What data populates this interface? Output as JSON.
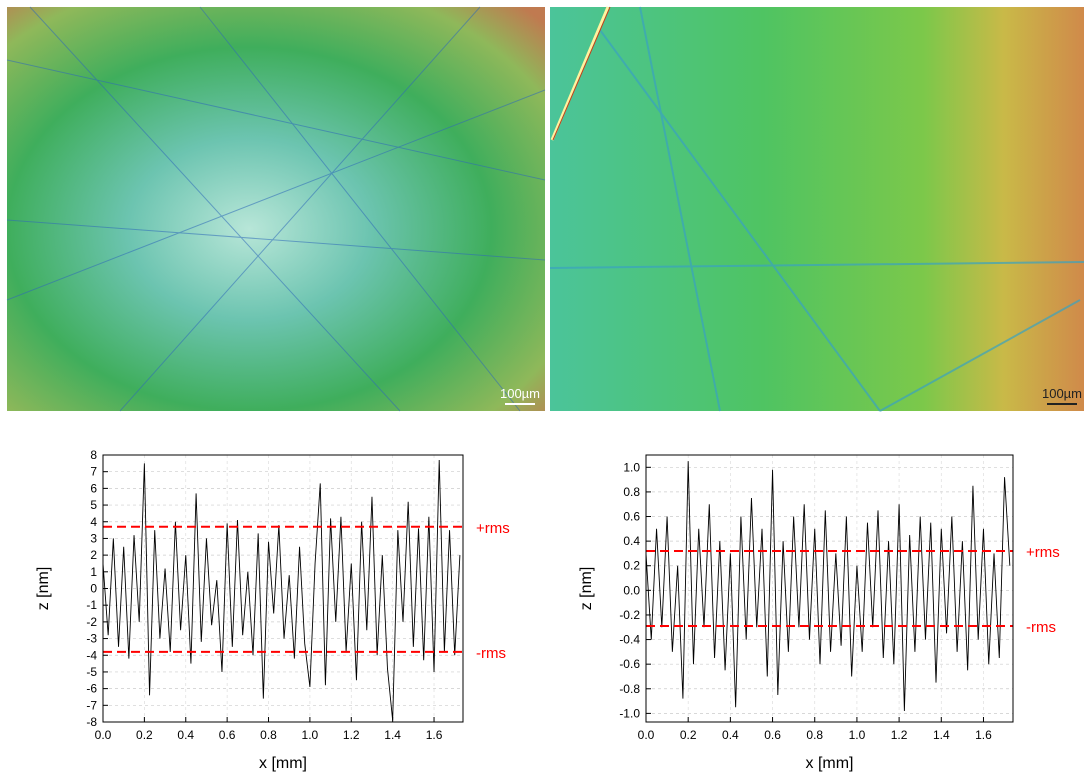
{
  "images": [
    {
      "scale_label": "100µm"
    },
    {
      "scale_label": "100µm"
    }
  ],
  "chart_data": [
    {
      "type": "line",
      "xlabel": "x [mm]",
      "ylabel": "z [nm]",
      "color": "#000000",
      "grid": true,
      "xlim": [
        0,
        1.74
      ],
      "ylim": [
        -8,
        8
      ],
      "xticks": [
        {
          "value": 0,
          "label": "0.0"
        },
        0.2,
        0.4,
        0.6,
        0.8,
        {
          "value": 1,
          "label": "1.0"
        },
        1.2,
        1.4,
        1.6
      ],
      "yticks": [
        -8,
        -7,
        -6,
        -5,
        -4,
        -3,
        -2,
        -1,
        0,
        1,
        2,
        3,
        4,
        5,
        6,
        7,
        8
      ],
      "reference_lines": [
        {
          "value": 3.7,
          "label": "+rms",
          "color": "#ff0000"
        },
        {
          "value": -3.8,
          "label": "-rms",
          "color": "#ff0000"
        }
      ],
      "x": [
        0,
        0.025,
        0.05,
        0.075,
        0.1,
        0.125,
        0.15,
        0.175,
        0.2,
        0.225,
        0.25,
        0.275,
        0.3,
        0.325,
        0.35,
        0.375,
        0.4,
        0.425,
        0.45,
        0.475,
        0.5,
        0.525,
        0.55,
        0.575,
        0.6,
        0.625,
        0.65,
        0.675,
        0.7,
        0.725,
        0.75,
        0.775,
        0.8,
        0.825,
        0.85,
        0.875,
        0.9,
        0.925,
        0.95,
        0.975,
        1,
        1.025,
        1.05,
        1.075,
        1.1,
        1.125,
        1.15,
        1.175,
        1.2,
        1.225,
        1.25,
        1.275,
        1.3,
        1.325,
        1.35,
        1.375,
        1.4,
        1.425,
        1.45,
        1.475,
        1.5,
        1.525,
        1.55,
        1.575,
        1.6,
        1.625,
        1.65,
        1.675,
        1.7,
        1.725
      ],
      "values": [
        1.5,
        -2.8,
        3.0,
        -3.5,
        2.5,
        -4.2,
        3.2,
        -2.0,
        7.5,
        -6.4,
        3.5,
        -3.0,
        1.2,
        -3.8,
        4.0,
        -2.5,
        2.0,
        -4.5,
        5.7,
        -3.2,
        3.0,
        -2.2,
        0.5,
        -5.0,
        3.9,
        -3.5,
        4.1,
        -2.8,
        1.0,
        -4.0,
        3.3,
        -6.6,
        2.8,
        -1.5,
        3.8,
        -3.0,
        0.8,
        -4.2,
        2.5,
        -3.3,
        -5.9,
        1.5,
        6.3,
        -5.8,
        4.2,
        -2.0,
        4.3,
        -3.8,
        1.5,
        -5.5,
        4.0,
        -2.5,
        5.5,
        -4.0,
        2.0,
        -4.8,
        -7.9,
        3.5,
        -2.0,
        5.2,
        -3.5,
        3.6,
        -4.3,
        4.3,
        -5.0,
        7.7,
        -3.8,
        3.5,
        -4.0,
        2.0
      ]
    },
    {
      "type": "line",
      "xlabel": "x [mm]",
      "ylabel": "z [nm]",
      "color": "#000000",
      "grid": true,
      "xlim": [
        0,
        1.74
      ],
      "ylim": [
        -1.07,
        1.1
      ],
      "xticks": [
        {
          "value": 0,
          "label": "0.0"
        },
        0.2,
        0.4,
        0.6,
        0.8,
        {
          "value": 1,
          "label": "1.0"
        },
        1.2,
        1.4,
        1.6
      ],
      "yticks": [
        {
          "value": -1,
          "label": "-1.0"
        },
        -0.8,
        -0.6,
        -0.4,
        -0.2,
        {
          "value": 0,
          "label": "0.0"
        },
        0.2,
        0.4,
        0.6,
        0.8,
        {
          "value": 1,
          "label": "1.0"
        }
      ],
      "reference_lines": [
        {
          "value": 0.32,
          "label": "+rms",
          "color": "#ff0000"
        },
        {
          "value": -0.29,
          "label": "-rms",
          "color": "#ff0000"
        }
      ],
      "x": [
        0,
        0.025,
        0.05,
        0.075,
        0.1,
        0.125,
        0.15,
        0.175,
        0.2,
        0.225,
        0.25,
        0.275,
        0.3,
        0.325,
        0.35,
        0.375,
        0.4,
        0.425,
        0.45,
        0.475,
        0.5,
        0.525,
        0.55,
        0.575,
        0.6,
        0.625,
        0.65,
        0.675,
        0.7,
        0.725,
        0.75,
        0.775,
        0.8,
        0.825,
        0.85,
        0.875,
        0.9,
        0.925,
        0.95,
        0.975,
        1,
        1.025,
        1.05,
        1.075,
        1.1,
        1.125,
        1.15,
        1.175,
        1.2,
        1.225,
        1.25,
        1.275,
        1.3,
        1.325,
        1.35,
        1.375,
        1.4,
        1.425,
        1.45,
        1.475,
        1.5,
        1.525,
        1.55,
        1.575,
        1.6,
        1.625,
        1.65,
        1.675,
        1.7,
        1.725
      ],
      "values": [
        0.3,
        -0.4,
        0.5,
        -0.3,
        0.6,
        -0.5,
        0.2,
        -0.88,
        1.05,
        -0.6,
        0.5,
        -0.3,
        0.7,
        -0.55,
        0.4,
        -0.65,
        0.3,
        -0.95,
        0.6,
        -0.4,
        0.75,
        -0.3,
        0.5,
        -0.7,
        0.98,
        -0.85,
        0.4,
        -0.5,
        0.6,
        -0.3,
        0.7,
        -0.4,
        0.5,
        -0.6,
        0.65,
        -0.5,
        0.3,
        -0.45,
        0.6,
        -0.7,
        0.2,
        -0.5,
        0.55,
        -0.3,
        0.65,
        -0.55,
        0.4,
        -0.6,
        0.7,
        -0.98,
        0.45,
        -0.5,
        0.6,
        -0.4,
        0.55,
        -0.75,
        0.5,
        -0.35,
        0.6,
        -0.5,
        0.4,
        -0.65,
        0.85,
        -0.4,
        0.5,
        -0.6,
        0.3,
        -0.55,
        0.92,
        0.2
      ]
    }
  ]
}
